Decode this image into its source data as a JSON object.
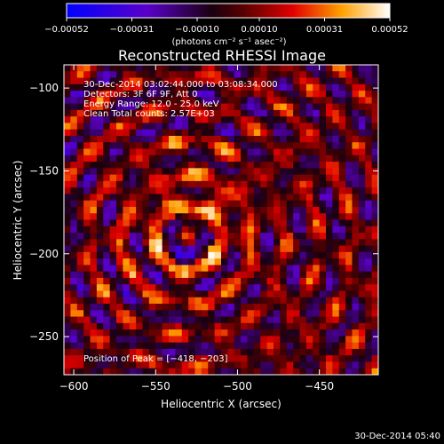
{
  "chart_data": {
    "type": "heatmap",
    "title": "Reconstructed RHESSI Image",
    "xlabel": "Heliocentric X (arcsec)",
    "ylabel": "Heliocentric Y (arcsec)",
    "xlim": [
      -606,
      -414
    ],
    "ylim": [
      -273,
      -86
    ],
    "x_ticks": [
      -600,
      -550,
      -500,
      -450
    ],
    "x_tick_labels": [
      "−600",
      "−550",
      "−500",
      "−450"
    ],
    "y_ticks": [
      -100,
      -150,
      -200,
      -250
    ],
    "y_tick_labels": [
      "−100",
      "−150",
      "−200",
      "−250"
    ],
    "colorbar": {
      "range": [
        -0.00052,
        0.00052
      ],
      "ticks": [
        -0.00052,
        -0.00031,
        -0.0001,
        0.0001,
        0.00031,
        0.00052
      ],
      "tick_labels": [
        "−0.00052",
        "−0.00031",
        "−0.00010",
        "0.00010",
        "0.00031",
        "0.00052"
      ],
      "unit_label": "(photons cm⁻² s⁻¹ asec⁻²)",
      "colormap": "blue-black-red-yellow-white"
    },
    "annotations": [
      "30-Dec-2014 03:02:44.000 to 03:08:34.000",
      "Detectors: 3F 6F 9F, Att 0",
      "Energy Range: 12.0 - 25.0 keV",
      "Clean     Total counts: 2.57E+03"
    ],
    "peak_label": "Position of Peak = [−418, −203]",
    "peak_position": [
      -418,
      -203
    ]
  },
  "footer": {
    "timestamp": "30-Dec-2014 05:40"
  }
}
